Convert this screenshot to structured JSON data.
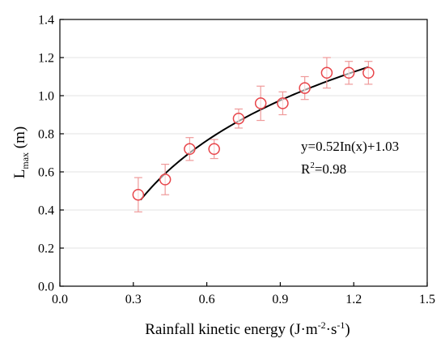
{
  "chart_data": {
    "type": "scatter",
    "xlabel_main": "Rainfall kinetic energy (J·m",
    "xlabel_sup1": "-2",
    "xlabel_mid": "·s",
    "xlabel_sup2": "-1",
    "xlabel_end": ")",
    "ylabel_main": "L",
    "ylabel_sub": "max",
    "ylabel_unit": " (m)",
    "xlim": [
      0.0,
      1.5
    ],
    "ylim": [
      0.0,
      1.4
    ],
    "x_ticks": [
      "0.0",
      "0.3",
      "0.6",
      "0.9",
      "1.2",
      "1.5"
    ],
    "y_ticks": [
      "0.0",
      "0.2",
      "0.4",
      "0.6",
      "0.8",
      "1.0",
      "1.2",
      "1.4"
    ],
    "grid": "horizontal",
    "marker_color": "#e8454a",
    "errorbar_color": "#ef9a9a",
    "fit_color": "#000000",
    "series": [
      {
        "x": [
          0.32,
          0.43,
          0.53,
          0.63,
          0.73,
          0.82,
          0.91,
          1.0,
          1.09,
          1.18,
          1.26
        ],
        "y": [
          0.48,
          0.56,
          0.72,
          0.72,
          0.88,
          0.96,
          0.96,
          1.04,
          1.12,
          1.12,
          1.12
        ],
        "err": [
          0.09,
          0.08,
          0.06,
          0.05,
          0.05,
          0.09,
          0.06,
          0.06,
          0.08,
          0.06,
          0.06
        ]
      }
    ],
    "fit": {
      "a": 0.52,
      "b": 1.03,
      "x_range": [
        0.33,
        1.26
      ]
    },
    "annotations": {
      "equation": "y=0.52In(x)+1.03",
      "r2_main": "R",
      "r2_sup": "2",
      "r2_value": "=0.98"
    }
  }
}
